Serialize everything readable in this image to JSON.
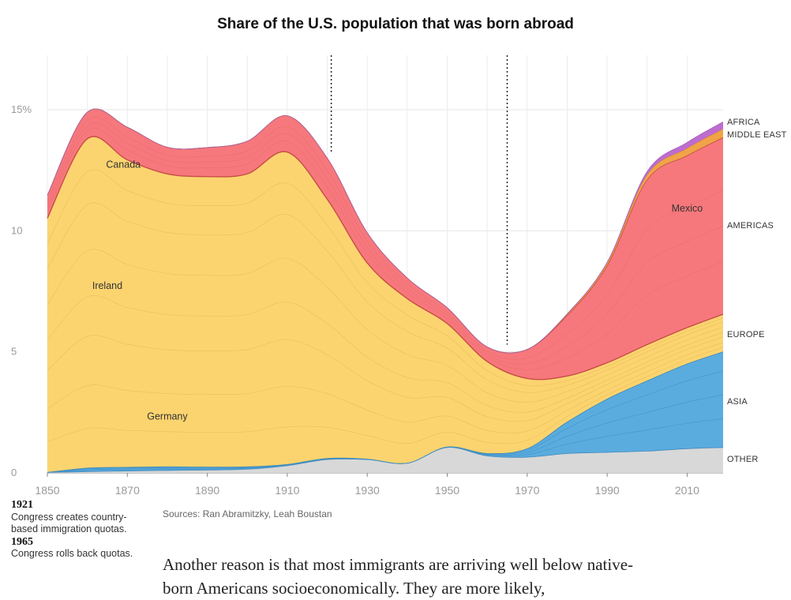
{
  "chart_data": {
    "type": "area",
    "title": "Share of the U.S. population that was born abroad",
    "xlim": [
      1850,
      2019
    ],
    "ylim": [
      0,
      15
    ],
    "yticks": [
      "15%",
      "10",
      "5",
      "0"
    ],
    "xticks": [
      "1850",
      "1870",
      "1890",
      "1910",
      "1930",
      "1950",
      "1970",
      "1990",
      "2010"
    ],
    "x": [
      1850,
      1860,
      1870,
      1880,
      1890,
      1900,
      1910,
      1920,
      1930,
      1940,
      1950,
      1960,
      1970,
      1980,
      1990,
      2000,
      2010,
      2019
    ],
    "series": [
      {
        "name": "OTHER",
        "color": "#d8d8d8",
        "values": [
          0.02,
          0.05,
          0.08,
          0.1,
          0.12,
          0.15,
          0.3,
          0.55,
          0.55,
          0.4,
          1.05,
          0.7,
          0.65,
          0.8,
          0.85,
          0.9,
          1.0,
          1.05
        ]
      },
      {
        "name": "ASIA",
        "color": "#5aacdf",
        "values": [
          0.0,
          0.15,
          0.15,
          0.15,
          0.12,
          0.1,
          0.05,
          0.05,
          0.02,
          0.0,
          0.02,
          0.1,
          0.35,
          1.3,
          2.2,
          2.9,
          3.5,
          3.95
        ]
      },
      {
        "name": "EUROPE",
        "color": "#fbd470",
        "values": [
          10.5,
          13.6,
          12.7,
          12.1,
          12.0,
          12.1,
          12.9,
          10.7,
          8.1,
          6.8,
          5.1,
          3.8,
          2.9,
          1.9,
          1.5,
          1.5,
          1.5,
          1.55
        ]
      },
      {
        "name": "AMERICAS",
        "color": "#f6787c",
        "values": [
          0.95,
          1.1,
          1.35,
          1.1,
          1.2,
          1.35,
          1.5,
          1.7,
          1.25,
          0.85,
          0.65,
          0.6,
          1.2,
          2.5,
          4.0,
          6.8,
          7.1,
          7.3
        ]
      },
      {
        "name": "MIDDLE EAST",
        "color": "#f0a447",
        "values": [
          0,
          0,
          0,
          0,
          0,
          0,
          0,
          0,
          0,
          0,
          0,
          0,
          0,
          0.05,
          0.1,
          0.2,
          0.3,
          0.35
        ]
      },
      {
        "name": "AFRICA",
        "color": "#be6cd0",
        "values": [
          0,
          0,
          0,
          0,
          0,
          0,
          0,
          0,
          0,
          0,
          0,
          0,
          0,
          0.02,
          0.05,
          0.15,
          0.25,
          0.3
        ]
      }
    ],
    "country_labels": [
      {
        "text": "Canada",
        "x": 1869,
        "y": 12.6
      },
      {
        "text": "Ireland",
        "x": 1865,
        "y": 7.6
      },
      {
        "text": "Germany",
        "x": 1880,
        "y": 2.2
      },
      {
        "text": "Mexico",
        "x": 2010,
        "y": 10.8
      }
    ],
    "region_labels": [
      "AFRICA",
      "MIDDLE EAST",
      "AMERICAS",
      "EUROPE",
      "ASIA",
      "OTHER"
    ],
    "markers": [
      1921,
      1965
    ]
  },
  "notes": [
    {
      "year": "1921",
      "text": "Congress creates country-based immigration quotas."
    },
    {
      "year": "1965",
      "text": "Congress rolls back quotas."
    }
  ],
  "source": "Sources: Ran Abramitzky, Leah Boustan",
  "body_text": "Another reason is that most immigrants are arriving well below native-born Americans socioeconomically. They are more likely,"
}
